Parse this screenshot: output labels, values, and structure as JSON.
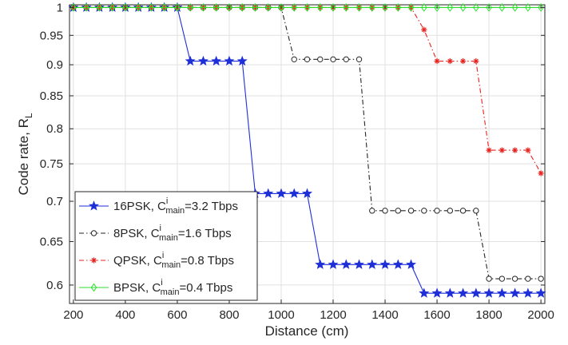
{
  "chart_data": {
    "type": "line",
    "xlabel": "Distance (cm)",
    "ylabel": {
      "base": "Code rate, R",
      "sub": "L"
    },
    "xlim": [
      185,
      2015
    ],
    "ylim": [
      0.58,
      1.005
    ],
    "y_scale": "log",
    "grid": true,
    "legend_position": "lower-left",
    "xticks": [
      200,
      400,
      600,
      800,
      1000,
      1200,
      1400,
      1600,
      1800,
      2000
    ],
    "xtick_labels": [
      "200",
      "400",
      "600",
      "800",
      "1000",
      "1200",
      "1400",
      "1600",
      "1800",
      "2000"
    ],
    "yticks": [
      0.6,
      0.65,
      0.7,
      0.75,
      0.8,
      0.85,
      0.9,
      0.95,
      1
    ],
    "ytick_labels": [
      "0.6",
      "0.65",
      "0.7",
      "0.75",
      "0.8",
      "0.85",
      "0.9",
      "0.95",
      "1"
    ],
    "x": [
      200,
      250,
      300,
      350,
      400,
      450,
      500,
      550,
      600,
      650,
      700,
      750,
      800,
      850,
      900,
      950,
      1000,
      1050,
      1100,
      1150,
      1200,
      1250,
      1300,
      1350,
      1400,
      1450,
      1500,
      1550,
      1600,
      1650,
      1700,
      1750,
      1800,
      1850,
      1900,
      1950,
      2000
    ],
    "series": [
      {
        "name": "16PSK, C",
        "sup": "i",
        "sub": "main",
        "suffix": "=3.2 Tbps",
        "color": "#1f2fd8",
        "marker": "star",
        "dash": "solid",
        "values": [
          1,
          1,
          1,
          1,
          1,
          1,
          1,
          1,
          1,
          0.906,
          0.906,
          0.906,
          0.906,
          0.906,
          0.71,
          0.71,
          0.71,
          0.71,
          0.71,
          0.623,
          0.623,
          0.623,
          0.623,
          0.623,
          0.623,
          0.623,
          0.623,
          0.591,
          0.591,
          0.591,
          0.591,
          0.591,
          0.591,
          0.591,
          0.591,
          0.591,
          0.591
        ]
      },
      {
        "name": "8PSK, C",
        "sup": "i",
        "sub": "main",
        "suffix": "=1.6 Tbps",
        "color": "#262626",
        "marker": "circle",
        "dash": "dashdot",
        "values": [
          1,
          1,
          1,
          1,
          1,
          1,
          1,
          1,
          1,
          1,
          1,
          1,
          1,
          1,
          1,
          1,
          1,
          0.909,
          0.909,
          0.909,
          0.909,
          0.909,
          0.909,
          0.688,
          0.688,
          0.688,
          0.688,
          0.688,
          0.688,
          0.688,
          0.688,
          0.688,
          0.607,
          0.607,
          0.607,
          0.607,
          0.607
        ]
      },
      {
        "name": "QPSK, C",
        "sup": "i",
        "sub": "main",
        "suffix": "=0.8 Tbps",
        "color": "#e8231e",
        "marker": "asterisk",
        "dash": "dashdot",
        "values": [
          1,
          1,
          1,
          1,
          1,
          1,
          1,
          1,
          1,
          1,
          1,
          1,
          1,
          1,
          1,
          1,
          1,
          1,
          1,
          1,
          1,
          1,
          1,
          1,
          1,
          1,
          1,
          0.96,
          0.906,
          0.906,
          0.906,
          0.906,
          0.769,
          0.769,
          0.769,
          0.769,
          0.737
        ]
      },
      {
        "name": "BPSK, C",
        "sup": "i",
        "sub": "main",
        "suffix": "=0.4 Tbps",
        "color": "#2be02b",
        "marker": "diamond",
        "dash": "solid",
        "values": [
          1,
          1,
          1,
          1,
          1,
          1,
          1,
          1,
          1,
          1,
          1,
          1,
          1,
          1,
          1,
          1,
          1,
          1,
          1,
          1,
          1,
          1,
          1,
          1,
          1,
          1,
          1,
          1,
          1,
          1,
          1,
          1,
          1,
          1,
          1,
          1,
          1
        ]
      }
    ]
  }
}
